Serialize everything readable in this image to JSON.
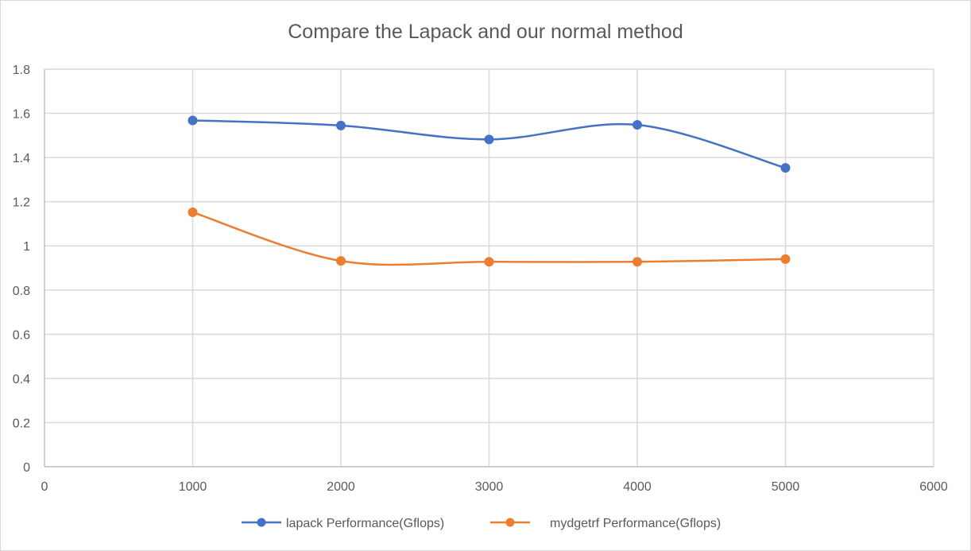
{
  "chart_data": {
    "type": "scatter",
    "title": "Compare the Lapack and our normal method",
    "xlabel": "",
    "ylabel": "",
    "xlim": [
      0,
      6000
    ],
    "ylim": [
      0,
      1.8
    ],
    "xticks": [
      0,
      1000,
      2000,
      3000,
      4000,
      5000,
      6000
    ],
    "yticks": [
      0,
      0.2,
      0.4,
      0.6,
      0.8,
      1,
      1.2,
      1.4,
      1.6,
      1.8
    ],
    "xtick_labels": [
      "0",
      "1000",
      "2000",
      "3000",
      "4000",
      "5000",
      "6000"
    ],
    "ytick_labels": [
      "0",
      "0.2",
      "0.4",
      "0.6",
      "0.8",
      "1",
      "1.2",
      "1.4",
      "1.6",
      "1.8"
    ],
    "grid": true,
    "smooth_lines": true,
    "legend_position": "bottom",
    "series": [
      {
        "name": "lapack Performance(Gflops)",
        "color": "#4472C4",
        "x": [
          1000,
          2000,
          3000,
          4000,
          5000
        ],
        "y": [
          1.568,
          1.545,
          1.482,
          1.548,
          1.353
        ]
      },
      {
        "name": "mydgetrf Performance(Gflops)",
        "color": "#ED7D31",
        "x": [
          1000,
          2000,
          3000,
          4000,
          5000
        ],
        "y": [
          1.152,
          0.932,
          0.928,
          0.928,
          0.94
        ]
      }
    ]
  }
}
